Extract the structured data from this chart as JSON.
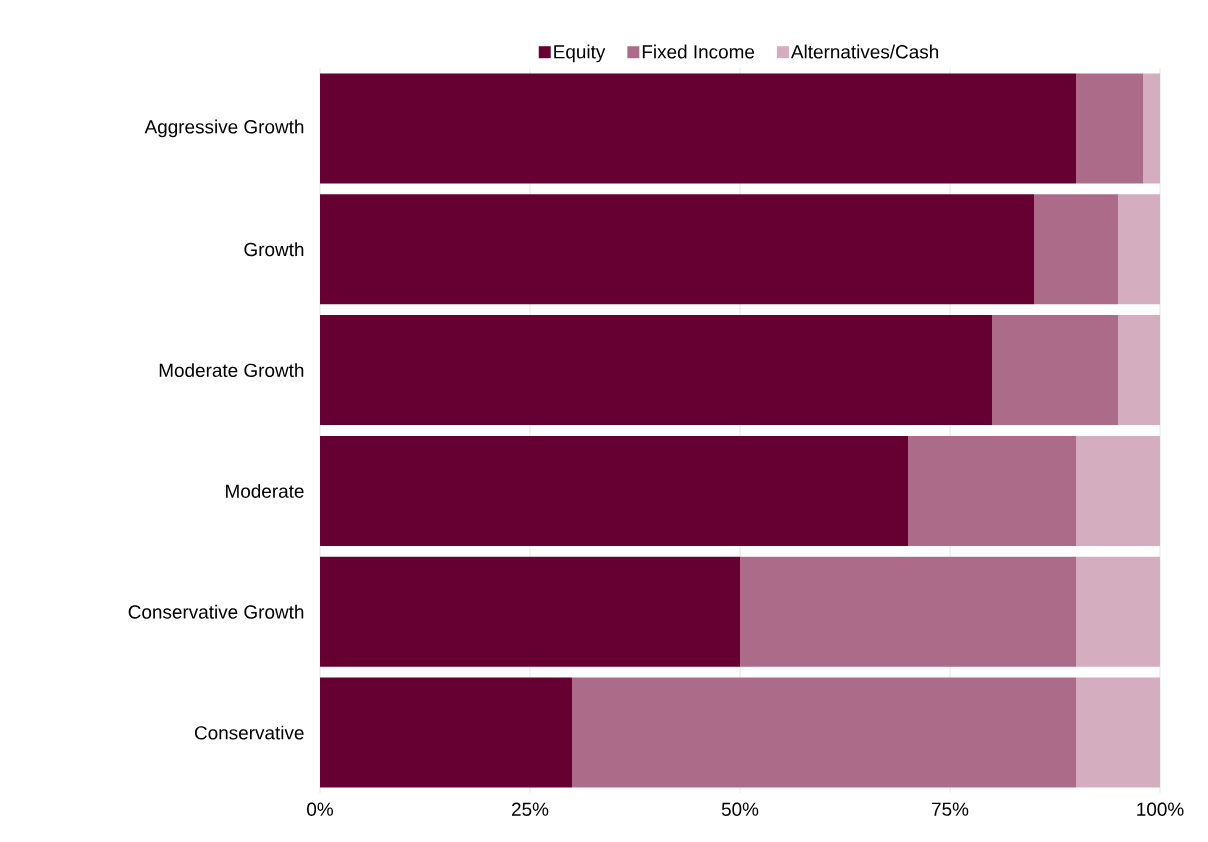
{
  "chart_data": {
    "type": "bar",
    "orientation": "horizontal",
    "stacked": true,
    "categories": [
      "Aggressive Growth",
      "Growth",
      "Moderate Growth",
      "Moderate",
      "Conservative Growth",
      "Conservative"
    ],
    "series": [
      {
        "name": "Equity",
        "color": "#660033",
        "values": [
          90,
          85,
          80,
          70,
          50,
          30
        ]
      },
      {
        "name": "Fixed Income",
        "color": "#ad6b8a",
        "values": [
          8,
          10,
          15,
          20,
          40,
          60
        ]
      },
      {
        "name": "Alternatives/Cash",
        "color": "#d4adbf",
        "values": [
          2,
          5,
          5,
          10,
          10,
          10
        ]
      }
    ],
    "xlim": [
      0,
      100
    ],
    "xticks": [
      {
        "value": 0,
        "label": "0%"
      },
      {
        "value": 25,
        "label": "25%"
      },
      {
        "value": 50,
        "label": "50%"
      },
      {
        "value": 75,
        "label": "75%"
      },
      {
        "value": 100,
        "label": "100%"
      }
    ],
    "grid": "x",
    "legend": "top"
  }
}
